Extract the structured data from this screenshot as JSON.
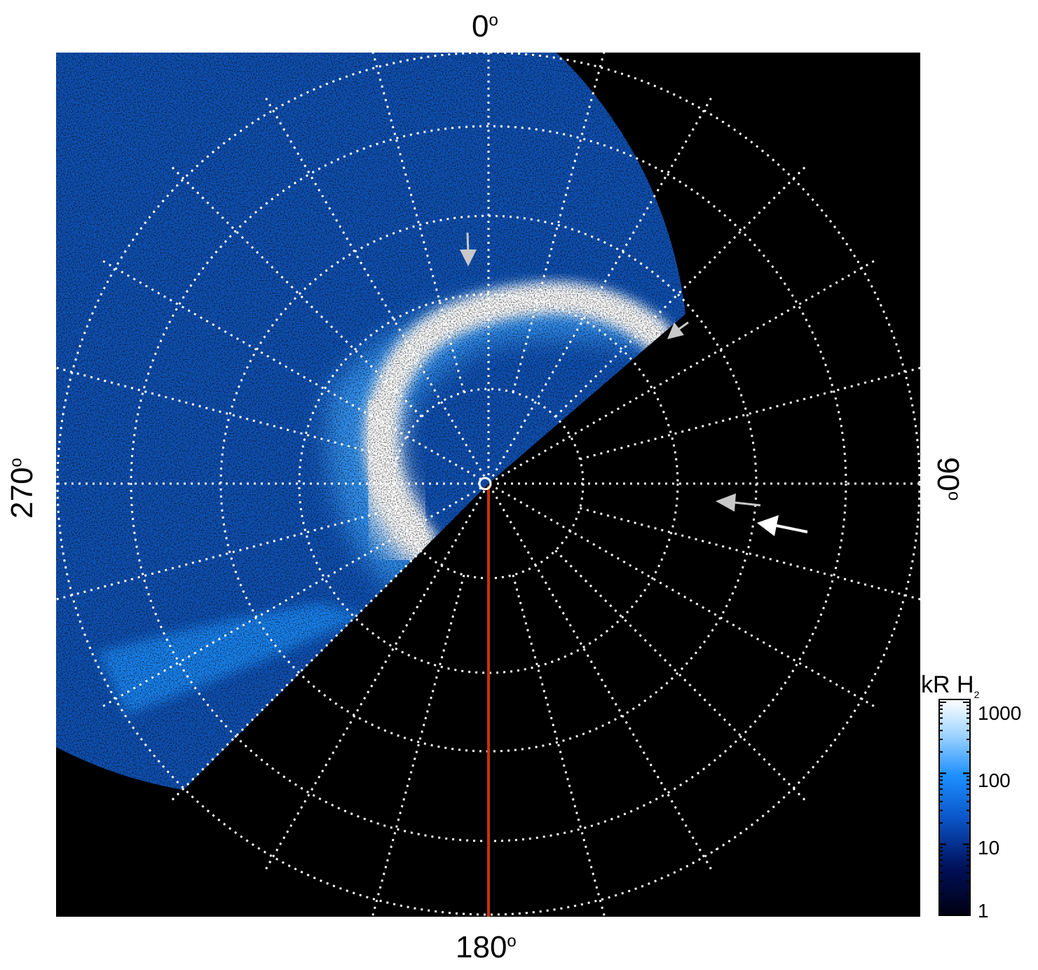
{
  "figure": {
    "axis_labels": {
      "top": "0",
      "right": "90",
      "bottom": "180",
      "left": "270",
      "degree_symbol": "o"
    },
    "colorbar": {
      "title": "kR H",
      "title_subscript": "2",
      "ticks": [
        "1000",
        "100",
        "10",
        "1"
      ],
      "colors": [
        "#000010",
        "#00105a",
        "#0a55c8",
        "#1e90ff",
        "#a8d8ff",
        "#ffffff"
      ]
    },
    "colors": {
      "background": "#000000",
      "grid": "#ffffff",
      "meridian_line": "#c8320a",
      "arrow_grey": "#c8c8c8",
      "arrow_white": "#ffffff",
      "aurora_bright": "#ffffff",
      "aurora_mid": "#1e90ff",
      "aurora_dark": "#0a3c8c"
    },
    "grid": {
      "rings": 5,
      "spokes": 24,
      "style": "dotted"
    },
    "arrows": [
      {
        "name": "upper-arrow",
        "color": "grey"
      },
      {
        "name": "right-upper-arrow",
        "color": "grey"
      },
      {
        "name": "right-middle-arrow",
        "color": "grey"
      },
      {
        "name": "right-lower-arrow",
        "color": "white"
      }
    ]
  }
}
